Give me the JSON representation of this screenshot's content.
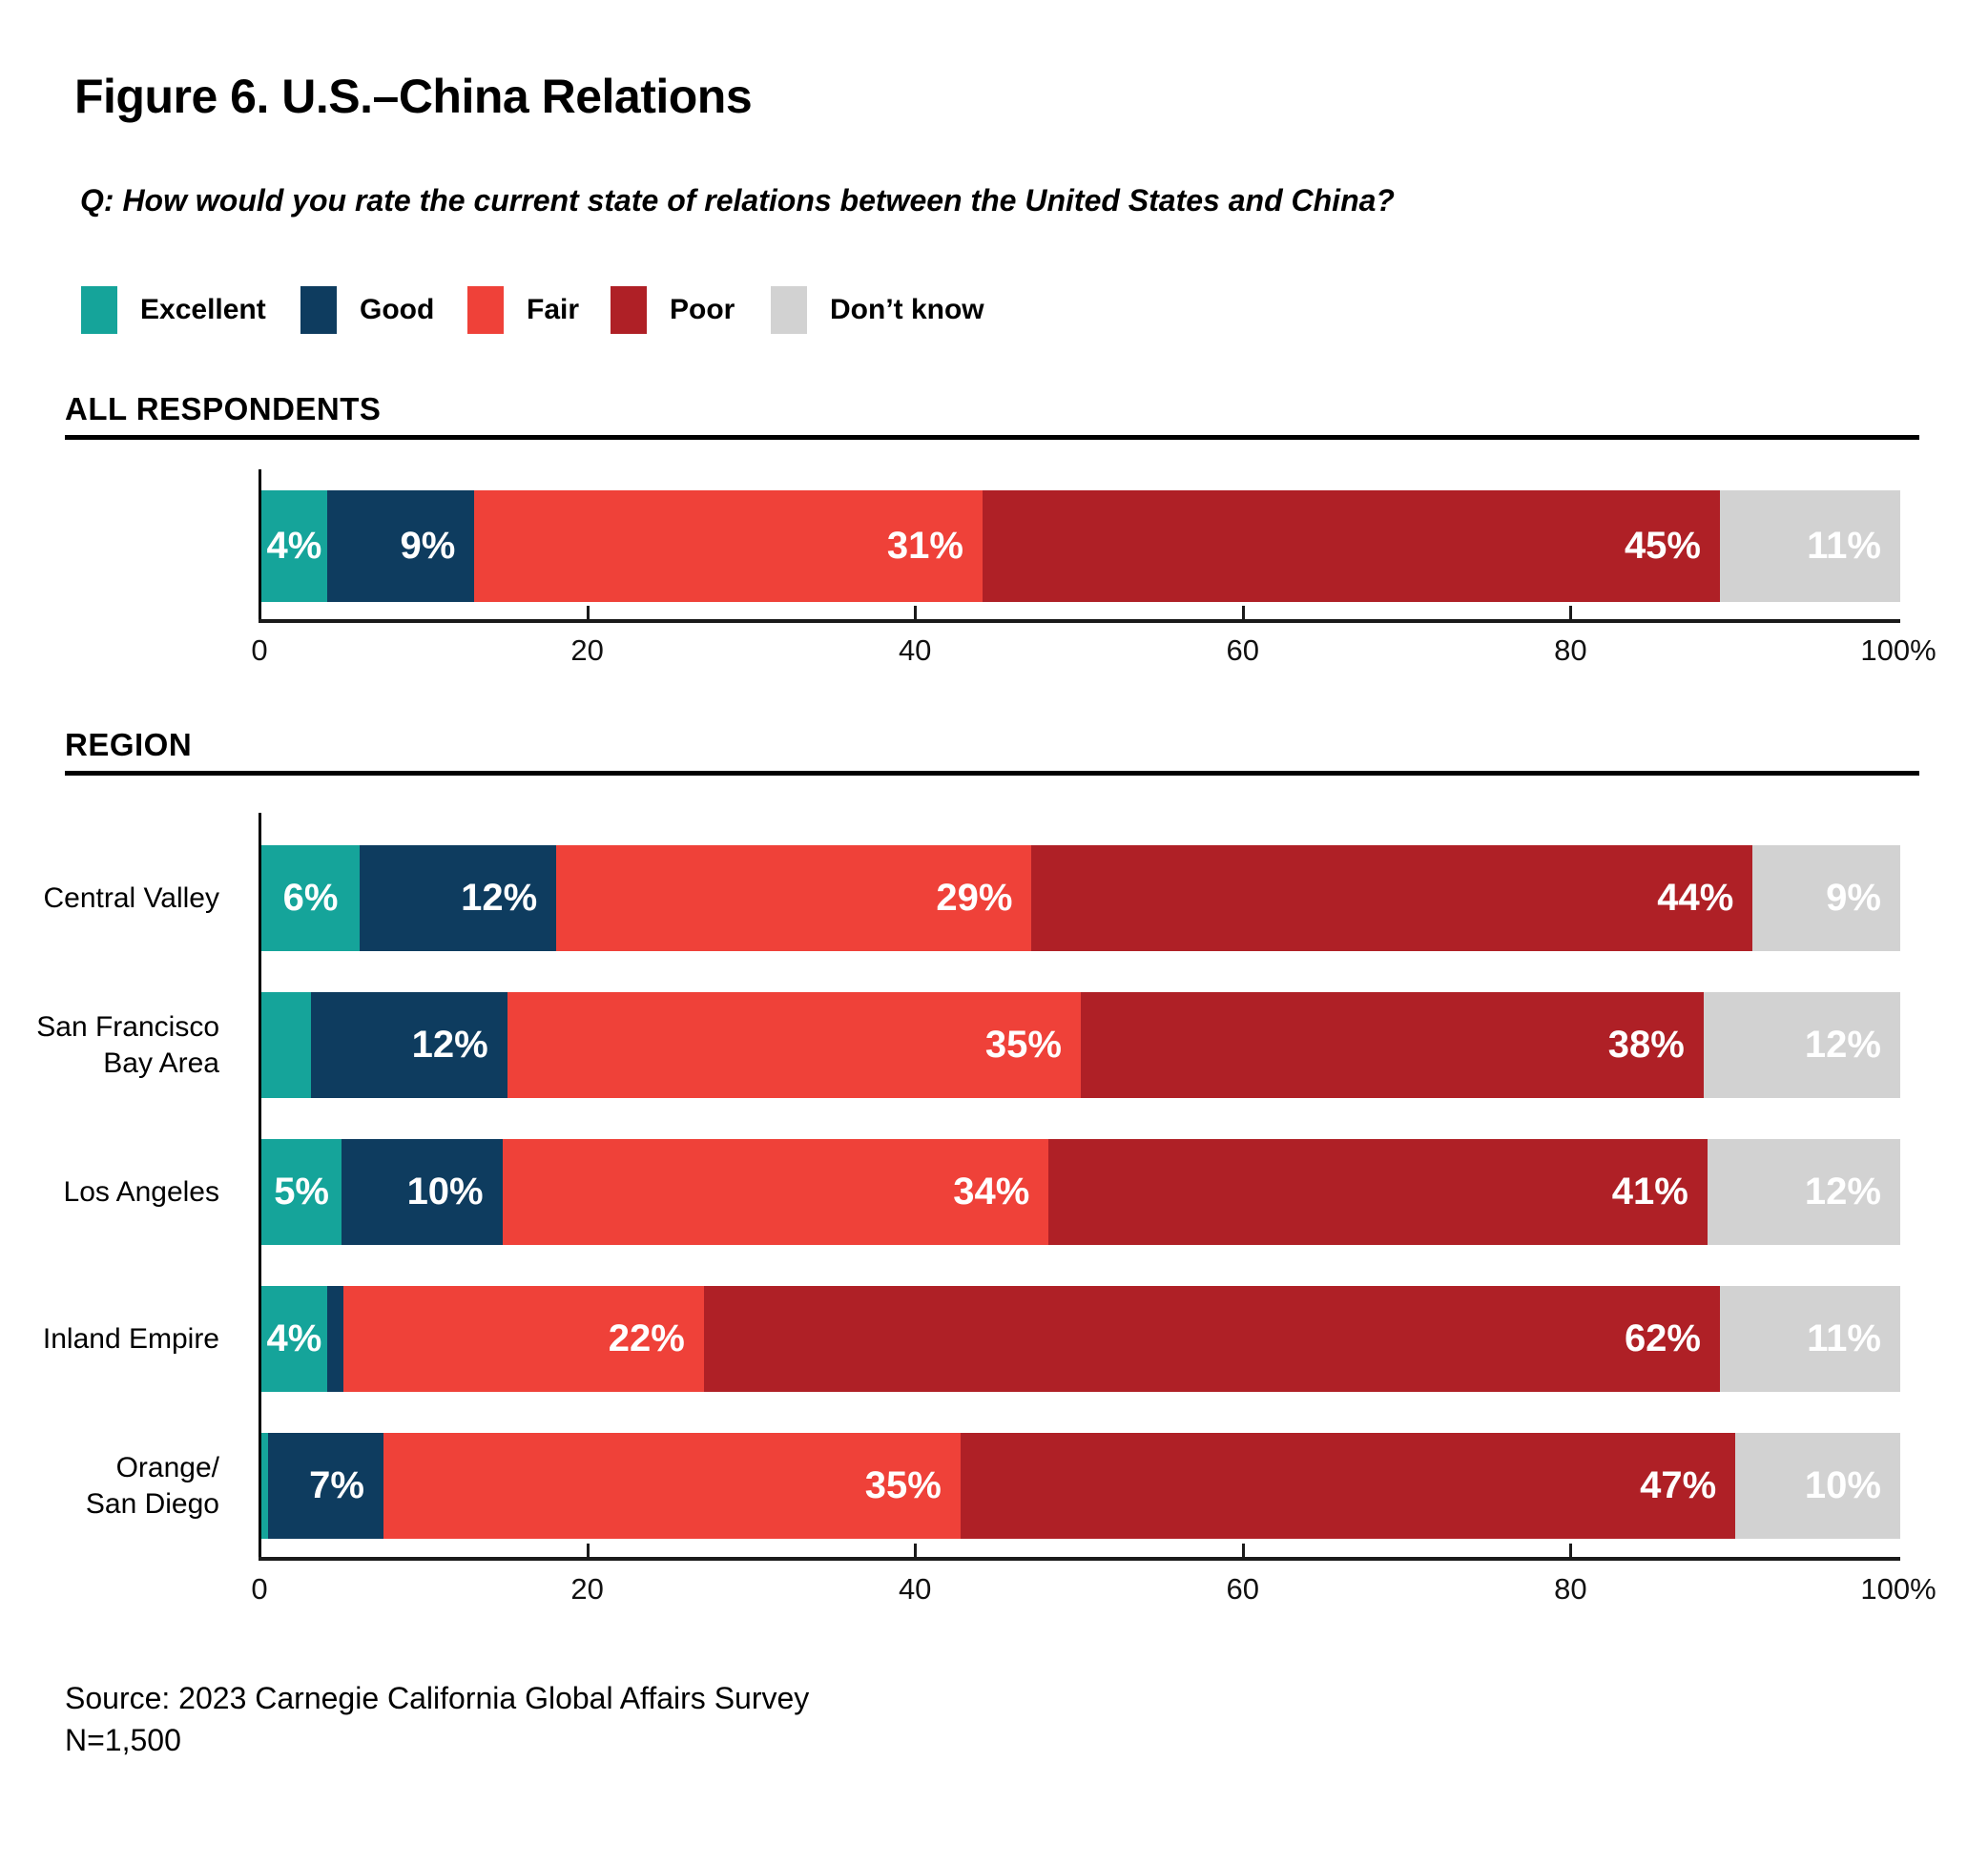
{
  "title": "Figure 6. U.S.–China Relations",
  "question": "Q: How would you rate the current state of relations between the United States and China?",
  "legend": [
    {
      "label": "Excellent",
      "color": "#15A49A"
    },
    {
      "label": "Good",
      "color": "#0E3C5F"
    },
    {
      "label": "Fair",
      "color": "#EF4139"
    },
    {
      "label": "Poor",
      "color": "#AF2026"
    },
    {
      "label": "Don’t know",
      "color": "#D2D2D2"
    }
  ],
  "source_line1": "Source: 2023 Carnegie California Global Affairs Survey",
  "source_line2": "N=1,500",
  "chart_data": {
    "type": "bar",
    "stacked": true,
    "orientation": "horizontal",
    "series_names": [
      "Excellent",
      "Good",
      "Fair",
      "Poor",
      "Don’t know"
    ],
    "x_axis": {
      "range": [
        0,
        100
      ],
      "tick_values": [
        0,
        20,
        40,
        60,
        80,
        100
      ],
      "tick_labels": [
        "0",
        "20",
        "40",
        "60",
        "80",
        "100%"
      ],
      "grid": false
    },
    "note": "Segments with empty label are drawn but unlabeled in the figure (values estimated from segment width)",
    "sections": [
      {
        "header": "ALL RESPONDENTS",
        "rows": [
          {
            "label": [],
            "segments": [
              {
                "series": "Excellent",
                "value": 4,
                "label": "4%"
              },
              {
                "series": "Good",
                "value": 9,
                "label": "9%"
              },
              {
                "series": "Fair",
                "value": 31,
                "label": "31%"
              },
              {
                "series": "Poor",
                "value": 45,
                "label": "45%"
              },
              {
                "series": "Don’t know",
                "value": 11,
                "label": "11%"
              }
            ]
          }
        ]
      },
      {
        "header": "REGION",
        "rows": [
          {
            "label": [
              "Central Valley"
            ],
            "segments": [
              {
                "series": "Excellent",
                "value": 6,
                "label": "6%"
              },
              {
                "series": "Good",
                "value": 12,
                "label": "12%"
              },
              {
                "series": "Fair",
                "value": 29,
                "label": "29%"
              },
              {
                "series": "Poor",
                "value": 44,
                "label": "44%"
              },
              {
                "series": "Don’t know",
                "value": 9,
                "label": "9%"
              }
            ]
          },
          {
            "label": [
              "San Francisco",
              "Bay Area"
            ],
            "segments": [
              {
                "series": "Excellent",
                "value": 3,
                "label": ""
              },
              {
                "series": "Good",
                "value": 12,
                "label": "12%"
              },
              {
                "series": "Fair",
                "value": 35,
                "label": "35%"
              },
              {
                "series": "Poor",
                "value": 38,
                "label": "38%"
              },
              {
                "series": "Don’t know",
                "value": 12,
                "label": "12%"
              }
            ]
          },
          {
            "label": [
              "Los Angeles"
            ],
            "segments": [
              {
                "series": "Excellent",
                "value": 5,
                "label": "5%"
              },
              {
                "series": "Good",
                "value": 10,
                "label": "10%"
              },
              {
                "series": "Fair",
                "value": 34,
                "label": "34%"
              },
              {
                "series": "Poor",
                "value": 41,
                "label": "41%"
              },
              {
                "series": "Don’t know",
                "value": 12,
                "label": "12%"
              }
            ]
          },
          {
            "label": [
              "Inland Empire"
            ],
            "segments": [
              {
                "series": "Excellent",
                "value": 4,
                "label": "4%"
              },
              {
                "series": "Good",
                "value": 1,
                "label": ""
              },
              {
                "series": "Fair",
                "value": 22,
                "label": "22%"
              },
              {
                "series": "Poor",
                "value": 62,
                "label": "62%"
              },
              {
                "series": "Don’t know",
                "value": 11,
                "label": "11%"
              }
            ]
          },
          {
            "label": [
              "Orange/",
              "San Diego"
            ],
            "segments": [
              {
                "series": "Excellent",
                "value": 0.4,
                "label": ""
              },
              {
                "series": "Good",
                "value": 7,
                "label": "7%"
              },
              {
                "series": "Fair",
                "value": 35,
                "label": "35%"
              },
              {
                "series": "Poor",
                "value": 47,
                "label": "47%"
              },
              {
                "series": "Don’t know",
                "value": 10,
                "label": "10%"
              }
            ]
          }
        ]
      }
    ]
  }
}
